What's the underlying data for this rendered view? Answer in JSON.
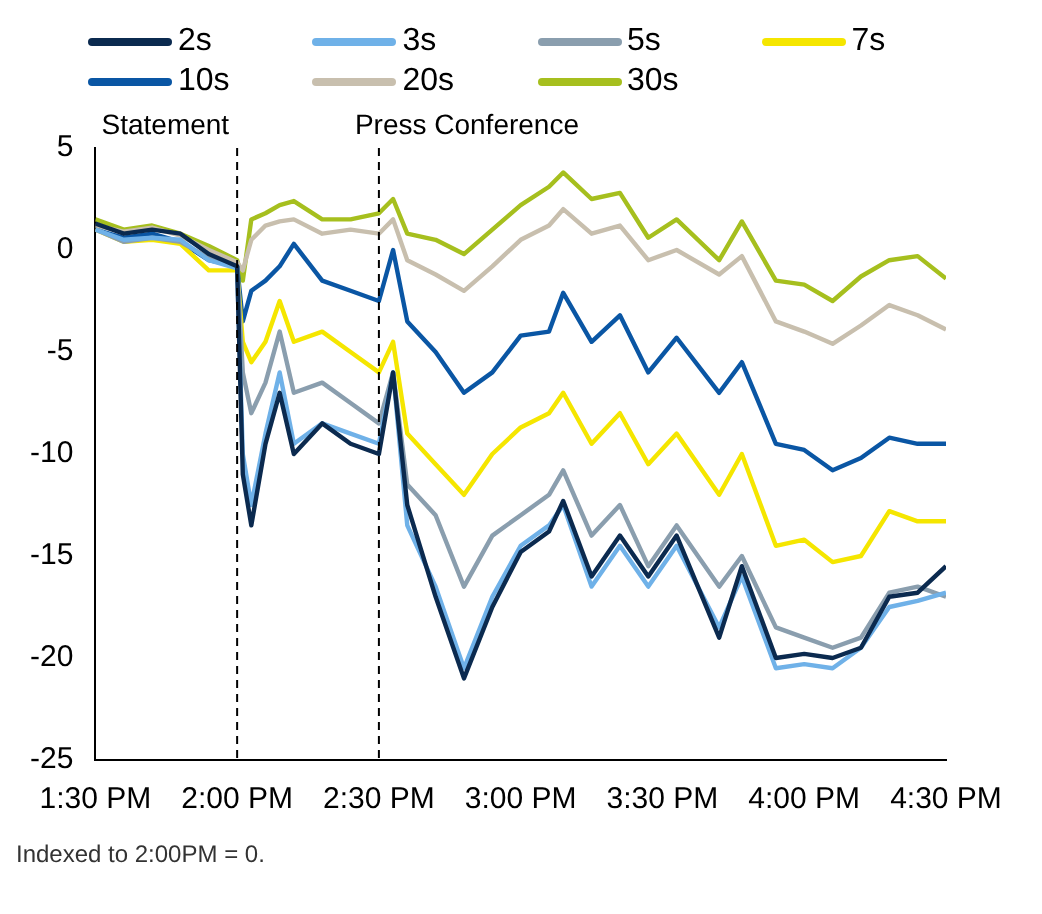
{
  "chart_data": {
    "type": "line",
    "x": [
      13.5,
      13.6,
      13.7,
      13.8,
      13.9,
      14.0,
      14.02,
      14.05,
      14.1,
      14.15,
      14.2,
      14.3,
      14.4,
      14.5,
      14.55,
      14.6,
      14.7,
      14.8,
      14.9,
      15.0,
      15.1,
      15.15,
      15.25,
      15.35,
      15.45,
      15.55,
      15.7,
      15.78,
      15.9,
      16.0,
      16.1,
      16.2,
      16.3,
      16.4,
      16.5
    ],
    "series": [
      {
        "name": "2s",
        "color": "#0b2a4f",
        "values": [
          1.3,
          0.8,
          1.0,
          0.8,
          -0.2,
          -0.8,
          -11,
          -13.5,
          -9.5,
          -7.0,
          -10.0,
          -8.5,
          -9.5,
          -10.0,
          -6.0,
          -12.5,
          -17,
          -21.0,
          -17.5,
          -14.8,
          -13.8,
          -12.3,
          -16,
          -14,
          -16,
          -14,
          -19,
          -15.5,
          -20,
          -19.8,
          -20.0,
          -19.5,
          -17.0,
          -16.8,
          -15.5
        ]
      },
      {
        "name": "3s",
        "color": "#6fb1e8",
        "values": [
          1.0,
          0.5,
          0.6,
          0.5,
          -0.5,
          -0.9,
          -10,
          -12.5,
          -9,
          -6.0,
          -9.5,
          -8.5,
          -9.0,
          -9.5,
          -6.0,
          -13.5,
          -16.5,
          -20.5,
          -17,
          -14.5,
          -13.5,
          -12.5,
          -16.5,
          -14.5,
          -16.5,
          -14.5,
          -18.5,
          -16,
          -20.5,
          -20.3,
          -20.5,
          -19.5,
          -17.5,
          -17.2,
          -16.8
        ]
      },
      {
        "name": "5s",
        "color": "#8a9eae",
        "values": [
          1.0,
          0.4,
          0.6,
          0.4,
          -0.4,
          -0.8,
          -6.0,
          -8.0,
          -6.5,
          -4.0,
          -7.0,
          -6.5,
          -7.5,
          -8.5,
          -6.0,
          -11.5,
          -13.0,
          -16.5,
          -14,
          -13.0,
          -12,
          -10.8,
          -14,
          -12.5,
          -15.5,
          -13.5,
          -16.5,
          -15,
          -18.5,
          -19.0,
          -19.5,
          -19,
          -16.8,
          -16.5,
          -17.0
        ]
      },
      {
        "name": "7s",
        "color": "#f5e600",
        "values": [
          1.0,
          0.4,
          0.5,
          0.3,
          -1.0,
          -1.0,
          -4.5,
          -5.5,
          -4.5,
          -2.5,
          -4.5,
          -4.0,
          -5.0,
          -6.0,
          -4.5,
          -9.0,
          -10.5,
          -12.0,
          -10,
          -8.7,
          -8.0,
          -7.0,
          -9.5,
          -8.0,
          -10.5,
          -9.0,
          -12,
          -10,
          -14.5,
          -14.2,
          -15.3,
          -15.0,
          -12.8,
          -13.3,
          -13.3
        ]
      },
      {
        "name": "10s",
        "color": "#0a56a4",
        "values": [
          1.0,
          0.6,
          0.8,
          0.4,
          -0.5,
          -0.8,
          -3.5,
          -2.0,
          -1.5,
          -0.8,
          0.3,
          -1.5,
          -2.0,
          -2.5,
          0.0,
          -3.5,
          -5.0,
          -7.0,
          -6.0,
          -4.2,
          -4.0,
          -2.1,
          -4.5,
          -3.2,
          -6.0,
          -4.3,
          -7.0,
          -5.5,
          -9.5,
          -9.8,
          -10.8,
          -10.2,
          -9.2,
          -9.5,
          -9.5
        ]
      },
      {
        "name": "20s",
        "color": "#c8bfae",
        "values": [
          1.2,
          0.9,
          1.1,
          0.7,
          0.0,
          -0.6,
          -1.0,
          0.5,
          1.2,
          1.4,
          1.5,
          0.8,
          1.0,
          0.8,
          1.5,
          -0.5,
          -1.2,
          -2.0,
          -0.8,
          0.5,
          1.2,
          2.0,
          0.8,
          1.2,
          -0.5,
          0.0,
          -1.2,
          -0.3,
          -3.5,
          -4.0,
          -4.6,
          -3.7,
          -2.7,
          -3.2,
          -3.9
        ]
      },
      {
        "name": "30s",
        "color": "#a6bf1e",
        "values": [
          1.5,
          1.0,
          1.2,
          0.8,
          0.2,
          -0.5,
          -1.5,
          1.5,
          1.8,
          2.2,
          2.4,
          1.5,
          1.5,
          1.8,
          2.5,
          0.8,
          0.5,
          -0.2,
          1.0,
          2.2,
          3.1,
          3.8,
          2.5,
          2.8,
          0.6,
          1.5,
          -0.5,
          1.4,
          -1.5,
          -1.7,
          -2.5,
          -1.3,
          -0.5,
          -0.3,
          -1.4
        ]
      }
    ],
    "xlim": [
      13.5,
      16.5
    ],
    "xticks": [
      {
        "value": 13.5,
        "label": "1:30 PM"
      },
      {
        "value": 14.0,
        "label": "2:00 PM"
      },
      {
        "value": 14.5,
        "label": "2:30 PM"
      },
      {
        "value": 15.0,
        "label": "3:00 PM"
      },
      {
        "value": 15.5,
        "label": "3:30 PM"
      },
      {
        "value": 16.0,
        "label": "4:00 PM"
      },
      {
        "value": 16.5,
        "label": "4:30 PM"
      }
    ],
    "ylim": [
      -25,
      5
    ],
    "yticks": [
      -25,
      -20,
      -15,
      -10,
      -5,
      0,
      5
    ],
    "ref_lines": [
      {
        "axis": "x",
        "value": 14.0,
        "label": "Statement",
        "color": "#000000",
        "line_style": "dashed"
      },
      {
        "axis": "x",
        "value": 14.5,
        "label": "Press Conference",
        "color": "#000000",
        "line_style": "dashed"
      }
    ],
    "annotations": [
      "Indexed to 2:00PM = 0."
    ],
    "legend": "top",
    "grid": false,
    "marker": "none",
    "line_style": "solid"
  }
}
